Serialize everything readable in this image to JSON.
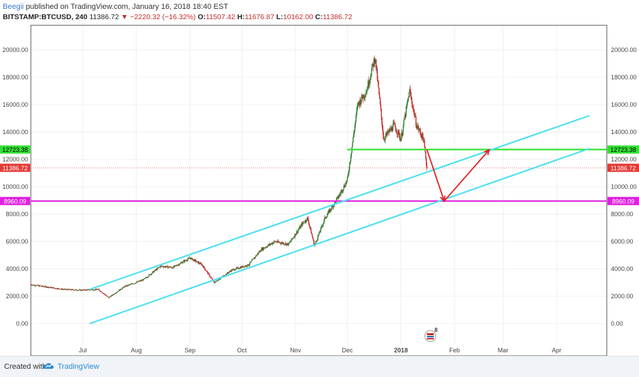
{
  "header": {
    "author": "Beegii",
    "published_text": "published on TradingView.com, January 16, 2018 18:40 EST",
    "symbol": "BITSTAMP:BTCUSD, 240",
    "last": "11386.72",
    "change": "−2220.32 (−16.32%)",
    "open_label": "O:",
    "open": "11507.42",
    "high_label": "H:",
    "high": "11676.87",
    "low_label": "L:",
    "low": "10162.00",
    "close_label": "C:",
    "close": "11386.72"
  },
  "footer": {
    "created_with": "Created with",
    "brand": "TradingView"
  },
  "colors": {
    "channel": "#4ee0f0",
    "resistance": "#33e033",
    "support": "#e020e0",
    "arrow": "#e02020",
    "up": "#2e7d32",
    "down": "#c62828",
    "price_line": "#e53935"
  },
  "chart_data": {
    "type": "candlestick",
    "x_axis": {
      "start": "2017-06-01",
      "end": "2018-04-30",
      "tick_labels": [
        {
          "date": "2017-07-01",
          "label": "Jul"
        },
        {
          "date": "2017-08-01",
          "label": "Aug"
        },
        {
          "date": "2017-09-01",
          "label": "Sep"
        },
        {
          "date": "2017-10-01",
          "label": "Oct"
        },
        {
          "date": "2017-11-01",
          "label": "Nov"
        },
        {
          "date": "2017-12-01",
          "label": "Dec"
        },
        {
          "date": "2018-01-01",
          "label": "2018"
        },
        {
          "date": "2018-02-01",
          "label": "Feb"
        },
        {
          "date": "2018-03-01",
          "label": "Mar"
        },
        {
          "date": "2018-04-01",
          "label": "Apr"
        }
      ]
    },
    "y_axis": {
      "min": -1500,
      "max": 21800,
      "ticks": [
        0,
        2000,
        4000,
        6000,
        8000,
        10000,
        12000,
        14000,
        16000,
        18000,
        20000
      ],
      "tick_labels": [
        "0.00",
        "2000.00",
        "4000.00",
        "6000.00",
        "8000.00",
        "10000.00",
        "12000.00",
        "14000.00",
        "16000.00",
        "18000.00",
        "20000.00"
      ],
      "scale": "linear",
      "grid": true
    },
    "price_path": [
      [
        "2017-06-01",
        2850
      ],
      [
        "2017-06-12",
        2650
      ],
      [
        "2017-06-20",
        2500
      ],
      [
        "2017-06-30",
        2450
      ],
      [
        "2017-07-10",
        2500
      ],
      [
        "2017-07-16",
        1900
      ],
      [
        "2017-07-25",
        2700
      ],
      [
        "2017-08-05",
        3200
      ],
      [
        "2017-08-15",
        4200
      ],
      [
        "2017-08-22",
        4100
      ],
      [
        "2017-09-01",
        4800
      ],
      [
        "2017-09-08",
        4300
      ],
      [
        "2017-09-15",
        3000
      ],
      [
        "2017-09-25",
        3900
      ],
      [
        "2017-10-05",
        4300
      ],
      [
        "2017-10-12",
        5400
      ],
      [
        "2017-10-20",
        6000
      ],
      [
        "2017-10-28",
        5800
      ],
      [
        "2017-11-05",
        7300
      ],
      [
        "2017-11-08",
        7700
      ],
      [
        "2017-11-12",
        5700
      ],
      [
        "2017-11-18",
        7700
      ],
      [
        "2017-11-26",
        9300
      ],
      [
        "2017-12-01",
        10500
      ],
      [
        "2017-12-07",
        16000
      ],
      [
        "2017-12-12",
        17000
      ],
      [
        "2017-12-17",
        19500
      ],
      [
        "2017-12-22",
        13500
      ],
      [
        "2017-12-28",
        14500
      ],
      [
        "2018-01-01",
        13500
      ],
      [
        "2018-01-06",
        17000
      ],
      [
        "2018-01-10",
        14500
      ],
      [
        "2018-01-14",
        13500
      ],
      [
        "2018-01-16",
        11386.72
      ]
    ],
    "price_path_note": "",
    "horizontal_levels": [
      {
        "price": 12723.38,
        "label": "12723.38",
        "color": "#33e033",
        "from": "2017-12-01",
        "to": "2018-04-30"
      },
      {
        "price": 11386.72,
        "label": "11386.72",
        "color": "#e53935",
        "style": "dotted",
        "current_price": true
      },
      {
        "price": 8960.09,
        "label": "8960.09",
        "color": "#e020e0",
        "from": "2017-06-01",
        "to": "2018-04-30"
      }
    ],
    "trendlines": [
      {
        "name": "",
        "from": [
          "2017-07-05",
          2500
        ],
        "to": [
          "2018-04-20",
          15200
        ]
      },
      {
        "name": "",
        "from": [
          "2017-07-05",
          0
        ],
        "to": [
          "2018-04-20",
          12800
        ]
      }
    ],
    "arrows": [
      {
        "from": [
          "2018-01-16",
          12723.38
        ],
        "to": [
          "2018-01-26",
          8960.09
        ]
      },
      {
        "from": [
          "2018-01-26",
          8960.09
        ],
        "to": [
          "2018-02-21",
          12700
        ]
      }
    ],
    "event_badge": {
      "date": "2018-01-18",
      "count": "8"
    }
  }
}
